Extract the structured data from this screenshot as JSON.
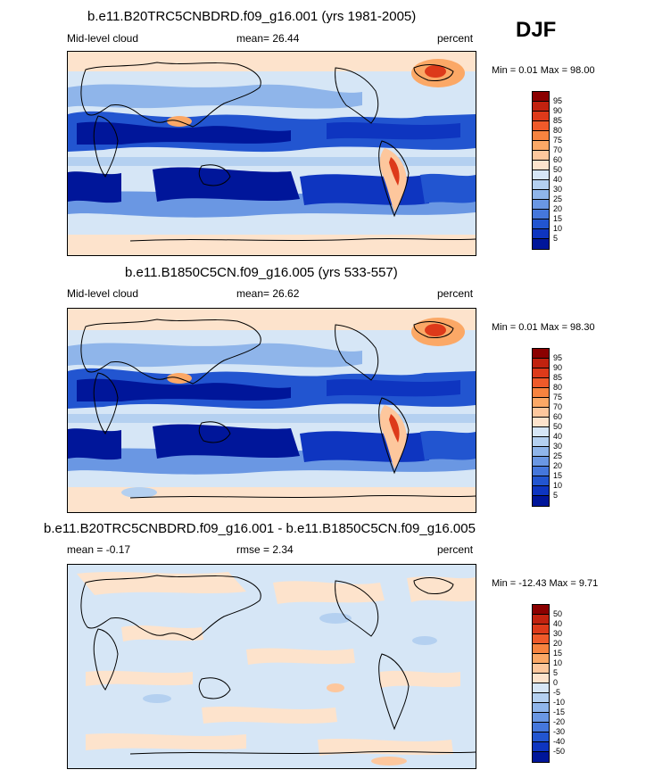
{
  "season": "DJF",
  "panels": [
    {
      "title": "b.e11.B20TRC5CNBDRD.f09_g16.001 (yrs 1981-2005)",
      "left_label": "Mid-level cloud",
      "center_label": "mean=  26.44",
      "right_label": "percent",
      "minmax": "Min =   0.01 Max =   98.00"
    },
    {
      "title": "b.e11.B1850C5CN.f09_g16.005 (yrs 533-557)",
      "left_label": "Mid-level cloud",
      "center_label": "mean=  26.62",
      "right_label": "percent",
      "minmax": "Min =   0.01 Max =   98.30"
    },
    {
      "title": "b.e11.B20TRC5CNBDRD.f09_g16.001 - b.e11.B1850C5CN.f09_g16.005",
      "left_label": "mean =  -0.17",
      "center_label": "rmse =   2.34",
      "right_label": "percent",
      "minmax": "Min = -12.43 Max =   9.71"
    }
  ],
  "colorbar_abs": {
    "labels": [
      "95",
      "90",
      "85",
      "80",
      "75",
      "70",
      "60",
      "50",
      "40",
      "30",
      "25",
      "20",
      "15",
      "10",
      "5"
    ],
    "colors": [
      "#8b0000",
      "#c1220f",
      "#dd3a1a",
      "#ef5a2a",
      "#f7833f",
      "#fba866",
      "#fdc79d",
      "#fde3cc",
      "#d6e6f6",
      "#b4d0f0",
      "#8fb5ea",
      "#6a97e3",
      "#4577dc",
      "#2255d0",
      "#0e35c0",
      "#00169a"
    ]
  },
  "colorbar_diff": {
    "labels": [
      "50",
      "40",
      "30",
      "20",
      "15",
      "10",
      "5",
      "0",
      "-5",
      "-10",
      "-15",
      "-20",
      "-30",
      "-40",
      "-50"
    ],
    "colors": [
      "#8b0000",
      "#c1220f",
      "#dd3a1a",
      "#ef5a2a",
      "#f7833f",
      "#fba866",
      "#fdc79d",
      "#fde3cc",
      "#d6e6f6",
      "#b4d0f0",
      "#8fb5ea",
      "#6a97e3",
      "#4577dc",
      "#2255d0",
      "#0e35c0",
      "#00169a"
    ]
  }
}
